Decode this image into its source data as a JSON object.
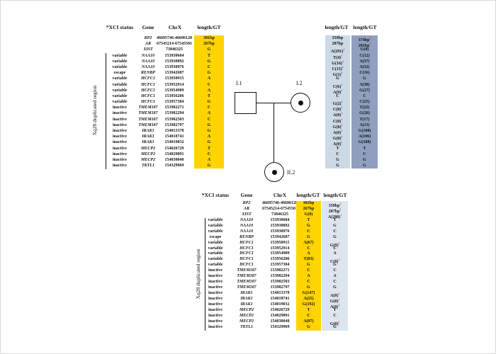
{
  "figure": {
    "region_label": "Xq28 duplicated region",
    "footnote_marker": "i",
    "colors": {
      "yellow_column": "#FFD400",
      "light_gray_blue_column": "#ccd9e6",
      "dark_gray_blue_column": "#8fa0bf",
      "pale_blue_column": "#dde5ee",
      "marker_red": "#c23b2e"
    },
    "pedigree": {
      "father_label": "I.1",
      "mother_label": "I.2",
      "daughter_label": "II.2"
    },
    "top_table": {
      "headers": {
        "status": "*XCI status",
        "gene": "Gene",
        "chrx": "ChrX",
        "gt_father": "length/GT",
        "gt_mother1": "length/GT",
        "gt_mother2": "length/GT"
      },
      "rows": [
        {
          "status": "",
          "gene": "RP2",
          "chrx": "46695746-46696128",
          "f": "381bp",
          "m1": "359bp",
          "k1": false,
          "m2": "374bp",
          "k2": true
        },
        {
          "status": "",
          "gene": "AR",
          "chrx": "67545214-67545501",
          "f": "267bp",
          "m1": "287bp",
          "k1": false,
          "m2": "281bp",
          "k2": true
        },
        {
          "status": "",
          "gene": "XIST",
          "chrx": "73846325",
          "f": "G",
          "m1": "A(291)",
          "k1": true,
          "m2": "G(0)",
          "k2": false
        },
        {
          "status": "variable",
          "gene": "NAA10",
          "chrx": "153930604",
          "f": "T",
          "m1": "T(4)",
          "k1": true,
          "m2": "C(12)",
          "k2": false
        },
        {
          "status": "variable",
          "gene": "NAA10",
          "chrx": "153930892",
          "f": "G",
          "m1": "G(16)",
          "k1": true,
          "m2": "A(37)",
          "k2": false
        },
        {
          "status": "variable",
          "gene": "NAA10",
          "chrx": "153930976",
          "f": "C",
          "m1": "C(15)",
          "k1": true,
          "m2": "A(32)",
          "k2": false
        },
        {
          "status": "escape",
          "gene": "RENBP",
          "chrx": "153942687",
          "f": "G",
          "m1": "G(1)",
          "k1": true,
          "m2": "C(16)",
          "k2": false
        },
        {
          "status": "variable",
          "gene": "HCFC1",
          "chrx": "153950915",
          "f": "A",
          "m1": "G",
          "k1": false,
          "m2": "G",
          "k2": false
        },
        {
          "status": "variable",
          "gene": "HCFC1",
          "chrx": "153952914",
          "f": "C",
          "m1": "C(6)",
          "k1": true,
          "m2": "A(38)",
          "k2": false
        },
        {
          "status": "variable",
          "gene": "HCFC1",
          "chrx": "153954909",
          "f": "A",
          "m1": "A(9)",
          "k1": true,
          "m2": "G(27)",
          "k2": false
        },
        {
          "status": "variable",
          "gene": "HCFC1",
          "chrx": "153956206",
          "f": "T",
          "m1": "C",
          "k1": false,
          "m2": "C",
          "k2": false
        },
        {
          "status": "variable",
          "gene": "HCFC1",
          "chrx": "153957384",
          "f": "G",
          "m1": "G(2)",
          "k1": true,
          "m2": "C(25)",
          "k2": false
        },
        {
          "status": "inactive",
          "gene": "TMEM187",
          "chrx": "153982271",
          "f": "C",
          "m1": "C(0)",
          "k1": true,
          "m2": "T(22)",
          "k2": false
        },
        {
          "status": "inactive",
          "gene": "TMEM187",
          "chrx": "153982294",
          "f": "A",
          "m1": "A(0)",
          "k1": true,
          "m2": "G(26)",
          "k2": false
        },
        {
          "status": "inactive",
          "gene": "TMEM187",
          "chrx": "153982503",
          "f": "C",
          "m1": "C(0)",
          "k1": true,
          "m2": "T(17)",
          "k2": false
        },
        {
          "status": "inactive",
          "gene": "TMEM187",
          "chrx": "153982797",
          "f": "G",
          "m1": "G(0)",
          "k1": true,
          "m2": "A(13)",
          "k2": false
        },
        {
          "status": "inactive",
          "gene": "IRAK1",
          "chrx": "154013378",
          "f": "G",
          "m1": "A(0)",
          "k1": true,
          "m2": "G(108)",
          "k2": false
        },
        {
          "status": "inactive",
          "gene": "IRAK1",
          "chrx": "154018741",
          "f": "A",
          "m1": "G(0)",
          "k1": true,
          "m2": "A(106)",
          "k2": false
        },
        {
          "status": "inactive",
          "gene": "IRAK1",
          "chrx": "154019032",
          "f": "G",
          "m1": "A(0)",
          "k1": true,
          "m2": "G(108)",
          "k2": false
        },
        {
          "status": "inactive",
          "gene": "MECP2",
          "chrx": "154026729",
          "f": "T",
          "m1": "T",
          "k1": false,
          "m2": "T",
          "k2": false
        },
        {
          "status": "inactive",
          "gene": "MECP2",
          "chrx": "154029091",
          "f": "C",
          "m1": "C",
          "k1": false,
          "m2": "C",
          "k2": false
        },
        {
          "status": "inactive",
          "gene": "MECP2",
          "chrx": "154030040",
          "f": "A",
          "m1": "G",
          "k1": false,
          "m2": "G",
          "k2": false
        },
        {
          "status": "inactive",
          "gene": "TKTL1",
          "chrx": "154329969",
          "f": "G",
          "m1": "G",
          "k1": false,
          "m2": "G",
          "k2": false
        }
      ]
    },
    "bottom_table": {
      "headers": {
        "status": "*XCI status",
        "gene": "Gene",
        "chrx": "ChrX",
        "gt1": "length/GT",
        "gt2": "length/GT"
      },
      "rows": [
        {
          "status": "",
          "gene": "RP2",
          "chrx": "46695746-46696128",
          "a1": "381bp",
          "a2": "359bp",
          "k2": true
        },
        {
          "status": "",
          "gene": "AR",
          "chrx": "67545214-67545501",
          "a1": "267bp",
          "a2": "287bp",
          "k2": true
        },
        {
          "status": "",
          "gene": "XIST",
          "chrx": "73846325",
          "a1": "G(0)",
          "a2": "A(288)",
          "k2": true
        },
        {
          "status": "variable",
          "gene": "NAA10",
          "chrx": "153930604",
          "a1": "T",
          "a2": "T",
          "k2": false
        },
        {
          "status": "variable",
          "gene": "NAA10",
          "chrx": "153930892",
          "a1": "G",
          "a2": "G",
          "k2": false
        },
        {
          "status": "variable",
          "gene": "NAA10",
          "chrx": "153930976",
          "a1": "C",
          "a2": "C",
          "k2": false
        },
        {
          "status": "escape",
          "gene": "RENBP",
          "chrx": "153942687",
          "a1": "G",
          "a2": "G",
          "k2": false
        },
        {
          "status": "variable",
          "gene": "HCFC1",
          "chrx": "153950915",
          "a1": "A(67)",
          "a2": "G(9)",
          "k2": true
        },
        {
          "status": "variable",
          "gene": "HCFC1",
          "chrx": "153952914",
          "a1": "C",
          "a2": "C",
          "k2": false
        },
        {
          "status": "variable",
          "gene": "HCFC1",
          "chrx": "153954909",
          "a1": "A",
          "a2": "A",
          "k2": false
        },
        {
          "status": "variable",
          "gene": "HCFC1",
          "chrx": "153956206",
          "a1": "T(83)",
          "a2": "C(8)",
          "k2": true
        },
        {
          "status": "variable",
          "gene": "HCFC1",
          "chrx": "153957384",
          "a1": "G",
          "a2": "G",
          "k2": false
        },
        {
          "status": "inactive",
          "gene": "TMEM187",
          "chrx": "153982271",
          "a1": "C",
          "a2": "C",
          "k2": false
        },
        {
          "status": "inactive",
          "gene": "TMEM187",
          "chrx": "153982294",
          "a1": "A",
          "a2": "A",
          "k2": false
        },
        {
          "status": "inactive",
          "gene": "TMEM187",
          "chrx": "153982503",
          "a1": "C",
          "a2": "C",
          "k2": false
        },
        {
          "status": "inactive",
          "gene": "TMEM187",
          "chrx": "153982797",
          "a1": "G",
          "a2": "G",
          "k2": false
        },
        {
          "status": "inactive",
          "gene": "IRAK1",
          "chrx": "154013378",
          "a1": "G(147)",
          "a2": "A(0)",
          "k2": true
        },
        {
          "status": "inactive",
          "gene": "IRAK1",
          "chrx": "154018741",
          "a1": "A(25)",
          "a2": "G(0)",
          "k2": true
        },
        {
          "status": "inactive",
          "gene": "IRAK1",
          "chrx": "154019032",
          "a1": "G(192)",
          "a2": "A(0)",
          "k2": true
        },
        {
          "status": "inactive",
          "gene": "MECP2",
          "chrx": "154026729",
          "a1": "T",
          "a2": "T",
          "k2": false
        },
        {
          "status": "inactive",
          "gene": "MECP2",
          "chrx": "154029091",
          "a1": "C",
          "a2": "C",
          "k2": false
        },
        {
          "status": "inactive",
          "gene": "MECP2",
          "chrx": "154030040",
          "a1": "A(97)",
          "a2": "G(0)",
          "k2": true
        },
        {
          "status": "inactive",
          "gene": "TKTL1",
          "chrx": "154329969",
          "a1": "G",
          "a2": "G",
          "k2": false
        }
      ]
    }
  }
}
